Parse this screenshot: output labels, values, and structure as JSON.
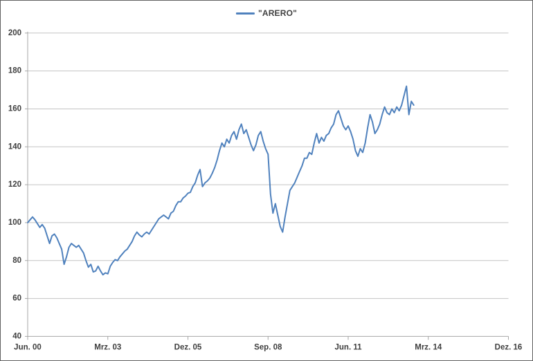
{
  "chart_data": {
    "type": "line",
    "title": "",
    "legend": {
      "position": "top-center",
      "entries": [
        "\"ARERO\""
      ]
    },
    "series": [
      {
        "name": "\"ARERO\"",
        "color": "#4F81BD",
        "start": "2000-06",
        "end": "2013-09",
        "frequency": "monthly",
        "values": [
          100,
          101.5,
          103,
          101.5,
          99.5,
          97.5,
          99,
          97,
          93,
          89,
          93,
          94,
          92,
          89,
          86,
          78,
          82,
          87,
          89,
          88,
          87,
          88,
          86,
          84,
          80,
          76.5,
          78,
          74,
          74.5,
          77,
          74.5,
          72.5,
          73.5,
          73,
          77,
          79,
          80.5,
          80,
          82,
          83.5,
          85,
          86,
          88,
          90,
          93,
          95,
          93.5,
          92.5,
          94,
          95,
          94,
          96,
          98,
          100,
          102,
          103,
          104,
          103,
          102,
          105,
          106,
          109,
          111,
          111,
          113,
          114,
          115.5,
          116,
          119,
          121,
          125,
          128,
          119,
          121,
          122,
          123.5,
          126,
          129,
          133,
          138,
          142,
          140,
          144,
          142,
          146,
          148,
          144,
          149,
          152,
          147,
          149,
          145,
          141,
          138,
          141,
          146,
          148,
          143,
          139,
          136,
          115,
          105,
          110,
          104,
          98,
          95,
          103,
          110,
          117,
          119,
          121,
          124,
          127,
          130,
          134,
          134,
          137,
          136,
          142,
          147,
          142,
          145,
          143,
          146,
          147,
          150,
          152,
          157,
          159,
          155,
          151,
          149,
          151,
          148,
          144,
          138,
          135,
          139,
          137,
          142,
          150,
          157,
          153,
          147,
          149,
          152,
          157,
          161,
          158,
          157,
          160,
          158,
          161,
          159,
          162,
          167,
          172,
          157,
          164,
          162
        ]
      }
    ],
    "x_axis": {
      "tick_labels": [
        "Jun. 00",
        "Mrz. 03",
        "Dez. 05",
        "Sep. 08",
        "Jun. 11",
        "Mrz. 14",
        "Dez. 16"
      ],
      "months_per_tick": 33,
      "total_months": 198
    },
    "y_axis": {
      "ticks": [
        40,
        60,
        80,
        100,
        120,
        140,
        160,
        180,
        200
      ],
      "min": 40,
      "max": 200
    },
    "grid": true,
    "colors": {
      "line": "#4F81BD",
      "gridline": "#C3C3C3",
      "axis": "#A6A6A6",
      "label_text": "#3F3F3F",
      "border": "#5F5F5F",
      "background": "#FFFFFF"
    }
  }
}
